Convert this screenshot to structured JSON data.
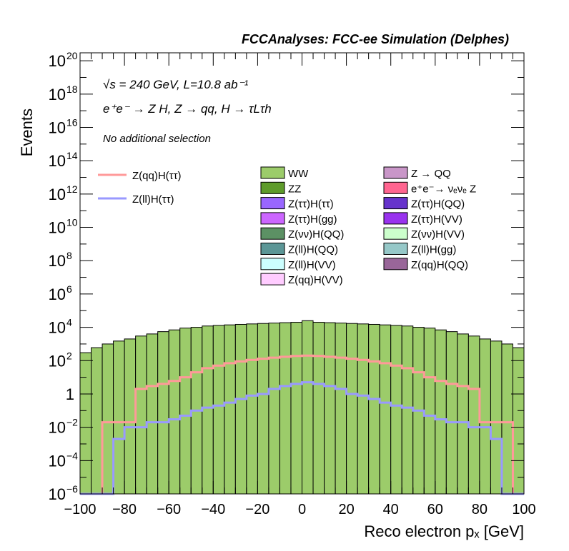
{
  "header": {
    "title": "FCCAnalyses: FCC-ee Simulation (Delphes)"
  },
  "annotations": {
    "energy_lumi": "√s = 240 GeV, L=10.8 ab⁻¹",
    "process": "e⁺e⁻ → Z H, Z → qq, H → τLτh",
    "selection": "No additional selection"
  },
  "chart_data": {
    "type": "bar",
    "title": "FCCAnalyses: FCC-ee Simulation (Delphes)",
    "xlabel": "Reco electron pₓ [GeV]",
    "ylabel": "Events",
    "xlim": [
      -100,
      100
    ],
    "ylim": [
      1e-06,
      3e+20
    ],
    "log_y": true,
    "grid": false,
    "bin_width": 5,
    "x_ticks": [
      -100,
      -80,
      -60,
      -40,
      -20,
      0,
      20,
      40,
      60,
      80,
      100
    ],
    "y_tick_labels": [
      {
        "value": 1e-06,
        "base": "10",
        "exp": "−6"
      },
      {
        "value": 0.0001,
        "base": "10",
        "exp": "−4"
      },
      {
        "value": 0.01,
        "base": "10",
        "exp": "−2"
      },
      {
        "value": 1,
        "base": "1",
        "exp": ""
      },
      {
        "value": 100.0,
        "base": "10",
        "exp": "2"
      },
      {
        "value": 10000.0,
        "base": "10",
        "exp": "4"
      },
      {
        "value": 1000000.0,
        "base": "10",
        "exp": "6"
      },
      {
        "value": 100000000.0,
        "base": "10",
        "exp": "8"
      },
      {
        "value": 10000000000.0,
        "base": "10",
        "exp": "10"
      },
      {
        "value": 1000000000000.0,
        "base": "10",
        "exp": "12"
      },
      {
        "value": 100000000000000.0,
        "base": "10",
        "exp": "14"
      },
      {
        "value": 1e+16,
        "base": "10",
        "exp": "16"
      },
      {
        "value": 1e+18,
        "base": "10",
        "exp": "18"
      },
      {
        "value": 1e+20,
        "base": "10",
        "exp": "20"
      }
    ],
    "stack_layers": [
      {
        "color": "#9ccc6a",
        "values": [
          300,
          600,
          1000,
          1500,
          2000,
          3000,
          4000,
          5500,
          7000,
          9000,
          10000,
          12000,
          13000,
          14000,
          15000,
          16000,
          17000,
          18000,
          19000,
          20000,
          25000,
          20000,
          19000,
          18000,
          17000,
          16000,
          15000,
          14000,
          13000,
          12000,
          10000,
          9000,
          7000,
          5500,
          4000,
          3000,
          2000,
          1500,
          1000,
          600
        ]
      },
      {
        "color": "#5e9b2b",
        "values": [
          10,
          5,
          25,
          50,
          80,
          120,
          200,
          300,
          400,
          500,
          600,
          700,
          800,
          900,
          1000,
          1100,
          1200,
          1300,
          1400,
          1500,
          1800,
          1500,
          1400,
          1300,
          1200,
          1100,
          1000,
          900,
          800,
          700,
          600,
          500,
          400,
          300,
          200,
          120,
          80,
          50,
          25,
          10
        ]
      },
      {
        "color": "#c996c8",
        "values": [
          1e-06,
          0.05,
          0.02,
          1e-06,
          1,
          1,
          1,
          1,
          1,
          1,
          1,
          1,
          1,
          1,
          1,
          1,
          1,
          1,
          1,
          1,
          1,
          1,
          1,
          1,
          1,
          1,
          1,
          1,
          1,
          1,
          1,
          1,
          1,
          1,
          0.5,
          1,
          1,
          0.05,
          0.02,
          1e-06
        ]
      },
      {
        "color": "#5c9164",
        "values": [
          0,
          0,
          0,
          0,
          0,
          0,
          0,
          0,
          0,
          0,
          1e-06,
          0.5,
          0,
          1,
          1e-06,
          1,
          1,
          1e-06,
          1,
          1,
          1,
          1,
          1,
          1,
          1,
          1,
          1,
          1,
          1,
          1,
          1,
          1,
          1,
          1e-06,
          1e-06,
          0,
          0,
          0,
          0,
          0
        ]
      },
      {
        "color": "#ff6590",
        "values": [
          0,
          0,
          0,
          0,
          0,
          0,
          0,
          0,
          0,
          0,
          0,
          0,
          0,
          1e-06,
          0,
          0,
          0.6,
          1e-06,
          1e-06,
          0,
          0,
          0,
          0,
          0,
          0,
          0,
          0,
          0,
          0,
          0,
          0,
          0,
          0,
          0,
          0,
          0,
          0,
          0,
          0,
          0
        ]
      },
      {
        "color": "#9aa6ff",
        "values": [
          0,
          0,
          0,
          0,
          0,
          0,
          0,
          0,
          0,
          0,
          0,
          0,
          0,
          0,
          0,
          0,
          0,
          0,
          0,
          0,
          0,
          0,
          0,
          0,
          0,
          0,
          0,
          0,
          0,
          0,
          0,
          0,
          0,
          0,
          0,
          0,
          0,
          0,
          0,
          0
        ]
      },
      {
        "color": "#cccc99",
        "values": [
          0,
          0,
          0,
          0,
          0,
          0,
          0,
          0,
          0,
          0,
          0,
          0,
          0,
          0,
          0,
          0,
          0,
          0,
          0,
          0,
          0,
          0,
          0,
          0,
          0,
          0,
          0,
          0,
          0,
          0,
          0,
          0,
          0,
          0,
          0,
          0,
          0,
          0,
          0,
          0
        ]
      },
      {
        "color": "#9c9cf0",
        "values": [
          0,
          0,
          0,
          0,
          0,
          0,
          0,
          0,
          0,
          0,
          0,
          0,
          0,
          0,
          0,
          0,
          0,
          0,
          0,
          0,
          0,
          0,
          0,
          0,
          0,
          0,
          0,
          0,
          0,
          0,
          0,
          0,
          0,
          0,
          0,
          0,
          0,
          0,
          0,
          0
        ]
      },
      {
        "color": "#96c8c8",
        "values": [
          0,
          0,
          0,
          0,
          0,
          0,
          0,
          0,
          0,
          0,
          0,
          0,
          0,
          0,
          0,
          0,
          0,
          0,
          0,
          0,
          0,
          0,
          0,
          0,
          0,
          0,
          0,
          0,
          0,
          0,
          0,
          0,
          0,
          0,
          0,
          0,
          0,
          0,
          0,
          0
        ]
      }
    ],
    "legend_entries": [
      {
        "name": "WW",
        "color": "#9ccc6a"
      },
      {
        "name": "Z → QQ",
        "color": "#c996c8"
      },
      {
        "name": "ZZ",
        "color": "#5e9b2b"
      },
      {
        "name": "e⁺e⁻→ νₑνₑ Z",
        "color": "#ff6590"
      },
      {
        "name": "Z(ττ)H(ττ)",
        "color": "#9966ff"
      },
      {
        "name": "Z(ττ)H(QQ)",
        "color": "#6633cc"
      },
      {
        "name": "Z(ττ)H(gg)",
        "color": "#cc66ff"
      },
      {
        "name": "Z(ττ)H(VV)",
        "color": "#9933ee"
      },
      {
        "name": "Z(νν)H(QQ)",
        "color": "#5c9164"
      },
      {
        "name": "Z(νν)H(VV)",
        "color": "#ccffcc"
      },
      {
        "name": "Z(ll)H(QQ)",
        "color": "#5c9696"
      },
      {
        "name": "Z(ll)H(gg)",
        "color": "#96c8c8"
      },
      {
        "name": "Z(ll)H(VV)",
        "color": "#ccffff"
      },
      {
        "name": "Z(qq)H(QQ)",
        "color": "#996699"
      },
      {
        "name": "Z(qq)H(VV)",
        "color": "#ffccff"
      }
    ],
    "signal_entries": [
      {
        "name": "Z(qq)H(ττ)",
        "color": "#ff9999"
      },
      {
        "name": "Z(ll)H(ττ)",
        "color": "#9999ff"
      }
    ]
  }
}
